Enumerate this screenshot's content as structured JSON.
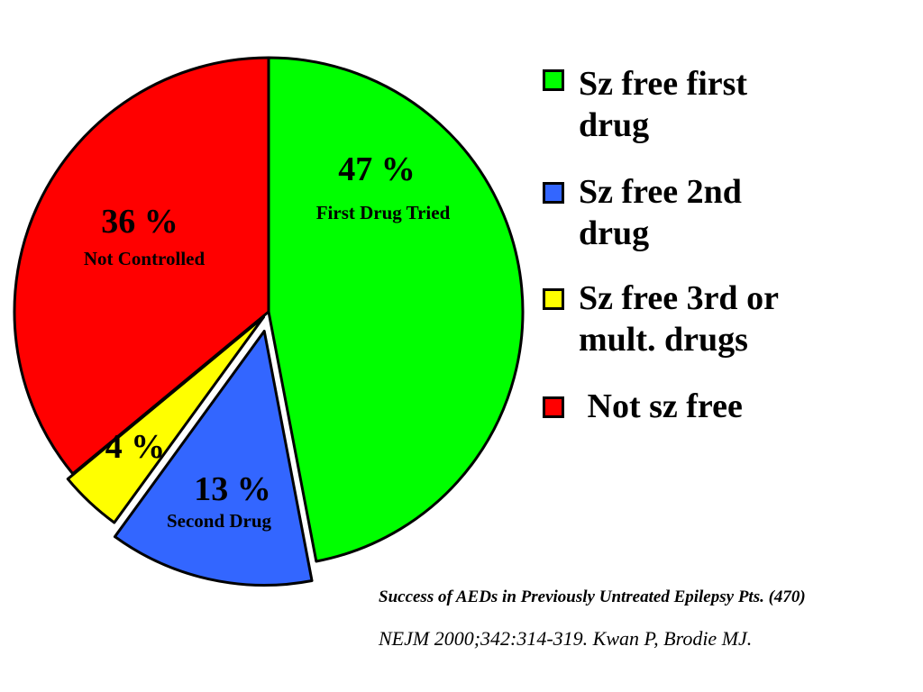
{
  "chart_data": {
    "type": "pie",
    "slices": [
      {
        "label": "Sz free first drug",
        "value": 47,
        "pct_text": "47 %",
        "desc": "First Drug Tried",
        "color": "#00FF00"
      },
      {
        "label": "Sz free 2nd drug",
        "value": 13,
        "pct_text": "13 %",
        "desc": "Second Drug",
        "color": "#3366FF"
      },
      {
        "label": "Sz free 3rd or mult. drugs",
        "value": 4,
        "pct_text": "4 %",
        "desc": "",
        "color": "#FFFF00"
      },
      {
        "label": "Not sz free",
        "value": 36,
        "pct_text": "36 %",
        "desc": "Not Controlled",
        "color": "#FF0000"
      }
    ],
    "legend_position": "right"
  },
  "legend": {
    "items": [
      {
        "lines": [
          "Sz free first",
          "drug"
        ],
        "color": "#00FF00"
      },
      {
        "lines": [
          "Sz free 2nd",
          "drug"
        ],
        "color": "#3366FF"
      },
      {
        "lines": [
          "Sz free 3rd or",
          "mult. drugs"
        ],
        "color": "#FFFF00"
      },
      {
        "lines": [
          " Not sz free"
        ],
        "color": "#FF0000"
      }
    ]
  },
  "citation": {
    "title": "Success of AEDs in Previously Untreated Epilepsy Pts. (470)",
    "reference": "NEJM 2000;342:314-319. Kwan P, Brodie MJ."
  }
}
